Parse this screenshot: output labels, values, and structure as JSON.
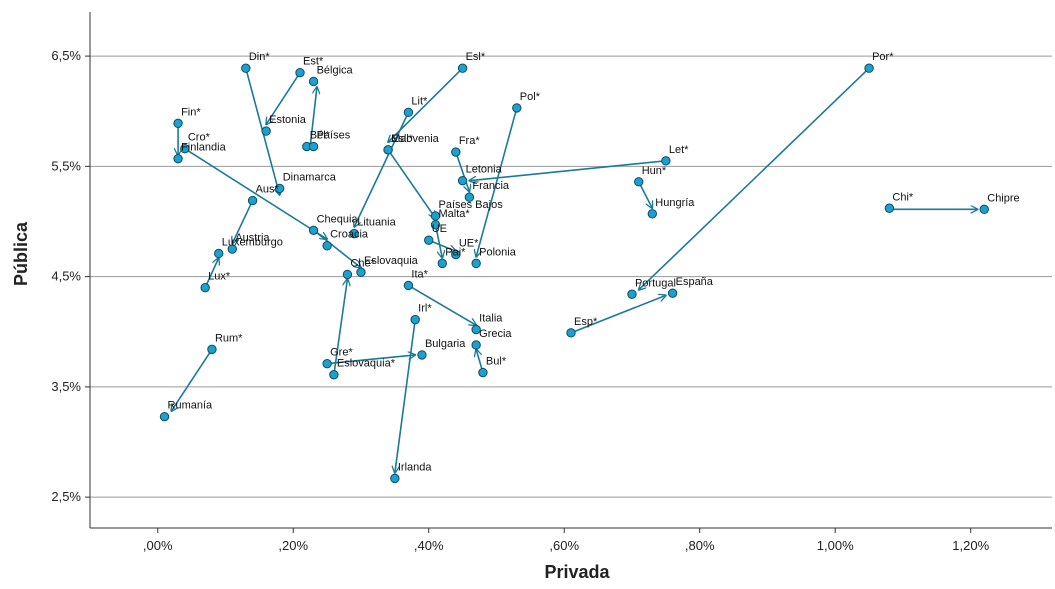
{
  "chart_data": {
    "type": "scatter",
    "xlabel": "Privada",
    "ylabel": "Pública",
    "xlim": [
      -0.1,
      1.32
    ],
    "ylim": [
      2.22,
      6.9
    ],
    "xticks": [
      0,
      0.2,
      0.4,
      0.6,
      0.8,
      1.0,
      1.2
    ],
    "xtick_labels": [
      ",00%",
      ",20%",
      ",40%",
      ",60%",
      ",80%",
      "1,00%",
      "1,20%"
    ],
    "yticks": [
      2.5,
      3.5,
      4.5,
      5.5,
      6.5
    ],
    "ytick_labels": [
      "2,5%",
      "3,5%",
      "4,5%",
      "5,5%",
      "6,5%"
    ],
    "grid": "horizontal",
    "points": [
      {
        "label": "Din*",
        "x": 0.13,
        "y": 6.39
      },
      {
        "label": "Est*",
        "x": 0.21,
        "y": 6.35
      },
      {
        "label": "Bélgica",
        "x": 0.23,
        "y": 6.27
      },
      {
        "label": "Esl*",
        "x": 0.45,
        "y": 6.39
      },
      {
        "label": "Por*",
        "x": 1.05,
        "y": 6.39
      },
      {
        "label": "Fin*",
        "x": 0.03,
        "y": 5.89
      },
      {
        "label": "Lit*",
        "x": 0.37,
        "y": 5.99
      },
      {
        "label": "Pol*",
        "x": 0.53,
        "y": 6.03
      },
      {
        "label": "Estonia",
        "x": 0.16,
        "y": 5.82
      },
      {
        "label": "Bél*",
        "x": 0.22,
        "y": 5.68
      },
      {
        "label": "Países",
        "x": 0.23,
        "y": 5.68
      },
      {
        "label": "Cro*",
        "x": 0.04,
        "y": 5.66
      },
      {
        "label": "Finlandia",
        "x": 0.03,
        "y": 5.57
      },
      {
        "label": "Mal*",
        "x": 0.34,
        "y": 5.65
      },
      {
        "label": "Eslovenia",
        "x": 0.34,
        "y": 5.65
      },
      {
        "label": "Fra*",
        "x": 0.44,
        "y": 5.63
      },
      {
        "label": "Let*",
        "x": 0.75,
        "y": 5.55
      },
      {
        "label": "Letonia",
        "x": 0.45,
        "y": 5.37
      },
      {
        "label": "Hun*",
        "x": 0.71,
        "y": 5.36
      },
      {
        "label": "Dinamarca",
        "x": 0.18,
        "y": 5.3
      },
      {
        "label": "Francia",
        "x": 0.46,
        "y": 5.22
      },
      {
        "label": "Aus*",
        "x": 0.14,
        "y": 5.19
      },
      {
        "label": "Chi*",
        "x": 1.08,
        "y": 5.12
      },
      {
        "label": "Chipre",
        "x": 1.22,
        "y": 5.11
      },
      {
        "label": "Hungría",
        "x": 0.73,
        "y": 5.07
      },
      {
        "label": "Países Bajos",
        "x": 0.41,
        "y": 5.05
      },
      {
        "label": "Malta*",
        "x": 0.41,
        "y": 4.97
      },
      {
        "label": "Chequia",
        "x": 0.23,
        "y": 4.92
      },
      {
        "label": "Lituania",
        "x": 0.29,
        "y": 4.89
      },
      {
        "label": "UE",
        "x": 0.4,
        "y": 4.83
      },
      {
        "label": "Croacia",
        "x": 0.25,
        "y": 4.78
      },
      {
        "label": "Austria",
        "x": 0.11,
        "y": 4.75
      },
      {
        "label": "Luxemburgo",
        "x": 0.09,
        "y": 4.71
      },
      {
        "label": "UE*",
        "x": 0.44,
        "y": 4.7
      },
      {
        "label": "Pai*",
        "x": 0.42,
        "y": 4.62
      },
      {
        "label": "Polonia",
        "x": 0.47,
        "y": 4.62
      },
      {
        "label": "Eslovaquia",
        "x": 0.3,
        "y": 4.54
      },
      {
        "label": "Che*",
        "x": 0.28,
        "y": 4.52
      },
      {
        "label": "Lux*",
        "x": 0.07,
        "y": 4.4
      },
      {
        "label": "Ita*",
        "x": 0.37,
        "y": 4.42
      },
      {
        "label": "Portugal",
        "x": 0.7,
        "y": 4.34
      },
      {
        "label": "España",
        "x": 0.76,
        "y": 4.35
      },
      {
        "label": "Irl*",
        "x": 0.38,
        "y": 4.11
      },
      {
        "label": "Italia",
        "x": 0.47,
        "y": 4.02
      },
      {
        "label": "Esp*",
        "x": 0.61,
        "y": 3.99
      },
      {
        "label": "Grecia",
        "x": 0.47,
        "y": 3.88
      },
      {
        "label": "Rum*",
        "x": 0.08,
        "y": 3.84
      },
      {
        "label": "Bulgaria",
        "x": 0.39,
        "y": 3.79
      },
      {
        "label": "Gre*",
        "x": 0.25,
        "y": 3.71
      },
      {
        "label": "Bul*",
        "x": 0.48,
        "y": 3.63
      },
      {
        "label": "Eslovaquia*",
        "x": 0.26,
        "y": 3.61
      },
      {
        "label": "Rumanía",
        "x": 0.01,
        "y": 3.23
      },
      {
        "label": "Irlanda",
        "x": 0.35,
        "y": 2.67
      }
    ],
    "arrows": [
      {
        "from": [
          0.13,
          6.39
        ],
        "to": [
          0.18,
          5.24
        ]
      },
      {
        "from": [
          0.21,
          6.35
        ],
        "to": [
          0.16,
          5.88
        ]
      },
      {
        "from": [
          0.225,
          5.68
        ],
        "to": [
          0.235,
          6.22
        ]
      },
      {
        "from": [
          0.45,
          6.39
        ],
        "to": [
          0.34,
          5.72
        ]
      },
      {
        "from": [
          1.05,
          6.39
        ],
        "to": [
          0.71,
          4.38
        ]
      },
      {
        "from": [
          0.03,
          5.89
        ],
        "to": [
          0.03,
          5.6
        ]
      },
      {
        "from": [
          0.37,
          5.99
        ],
        "to": [
          0.29,
          4.95
        ]
      },
      {
        "from": [
          0.53,
          6.03
        ],
        "to": [
          0.47,
          4.68
        ]
      },
      {
        "from": [
          0.04,
          5.66
        ],
        "to": [
          0.25,
          4.84
        ]
      },
      {
        "from": [
          0.34,
          5.65
        ],
        "to": [
          0.41,
          5.03
        ]
      },
      {
        "from": [
          0.44,
          5.63
        ],
        "to": [
          0.46,
          5.27
        ]
      },
      {
        "from": [
          0.75,
          5.55
        ],
        "to": [
          0.46,
          5.37
        ]
      },
      {
        "from": [
          0.71,
          5.36
        ],
        "to": [
          0.73,
          5.12
        ]
      },
      {
        "from": [
          0.14,
          5.19
        ],
        "to": [
          0.11,
          4.8
        ]
      },
      {
        "from": [
          1.08,
          5.11
        ],
        "to": [
          1.21,
          5.11
        ]
      },
      {
        "from": [
          0.41,
          4.97
        ],
        "to": [
          0.42,
          4.67
        ]
      },
      {
        "from": [
          0.4,
          4.83
        ],
        "to": [
          0.44,
          4.73
        ]
      },
      {
        "from": [
          0.23,
          4.92
        ],
        "to": [
          0.3,
          4.58
        ]
      },
      {
        "from": [
          0.07,
          4.4
        ],
        "to": [
          0.09,
          4.67
        ]
      },
      {
        "from": [
          0.37,
          4.42
        ],
        "to": [
          0.47,
          4.06
        ]
      },
      {
        "from": [
          0.61,
          3.99
        ],
        "to": [
          0.75,
          4.33
        ]
      },
      {
        "from": [
          0.38,
          4.11
        ],
        "to": [
          0.35,
          2.72
        ]
      },
      {
        "from": [
          0.25,
          3.71
        ],
        "to": [
          0.38,
          3.79
        ]
      },
      {
        "from": [
          0.26,
          3.61
        ],
        "to": [
          0.28,
          4.48
        ]
      },
      {
        "from": [
          0.48,
          3.63
        ],
        "to": [
          0.47,
          3.84
        ]
      },
      {
        "from": [
          0.08,
          3.84
        ],
        "to": [
          0.02,
          3.28
        ]
      }
    ]
  }
}
